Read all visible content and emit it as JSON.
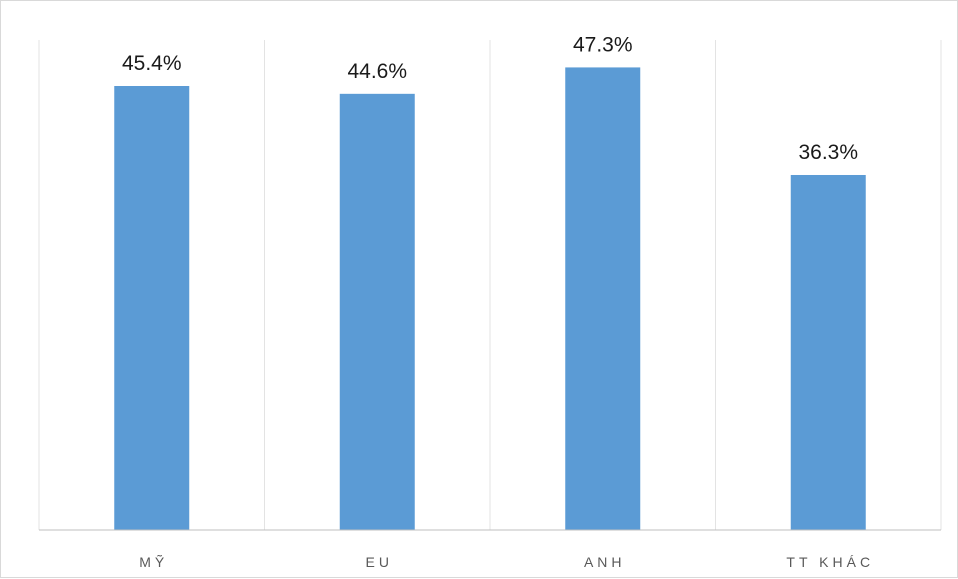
{
  "chart_data": {
    "type": "bar",
    "categories": [
      "MỸ",
      "EU",
      "ANH",
      "TT KHÁC"
    ],
    "values": [
      45.4,
      44.6,
      47.3,
      36.3
    ],
    "data_labels": [
      "45.4%",
      "44.6%",
      "47.3%",
      "36.3%"
    ],
    "unit": "%",
    "ylim": [
      0,
      50
    ],
    "grid": "vertical category separators only",
    "legend": "none",
    "bar_color": "#5b9bd5",
    "axis_color": "#bfbfbf",
    "title": "",
    "xlabel": "",
    "ylabel": ""
  }
}
